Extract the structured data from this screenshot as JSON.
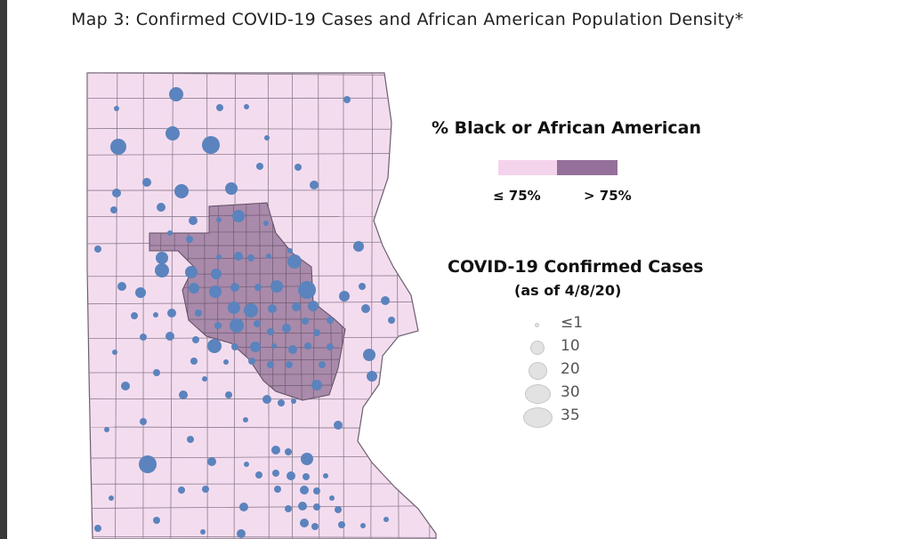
{
  "title": "Map 3: Confirmed COVID-19 Cases and African American Population Density*",
  "colors": {
    "tract_low": "#f4dcef",
    "tract_high": "#a98aaa",
    "boundary": "#7a6e7c",
    "case_dot": "#5b83bd",
    "legend_symbol": "#e2e2e2"
  },
  "legend": {
    "pct_title": "% Black or African American",
    "classes": [
      {
        "label": "≤ 75%",
        "color": "#f4d4ec"
      },
      {
        "label": "> 75%",
        "color": "#94709a"
      }
    ],
    "cases_title": "COVID-19 Confirmed Cases",
    "cases_subtitle": "(as of 4/8/20)",
    "sizes": [
      {
        "label": "≤1",
        "value": 1
      },
      {
        "label": "10",
        "value": 10
      },
      {
        "label": "20",
        "value": 20
      },
      {
        "label": "30",
        "value": 30
      },
      {
        "label": "35",
        "value": 35
      }
    ]
  }
}
